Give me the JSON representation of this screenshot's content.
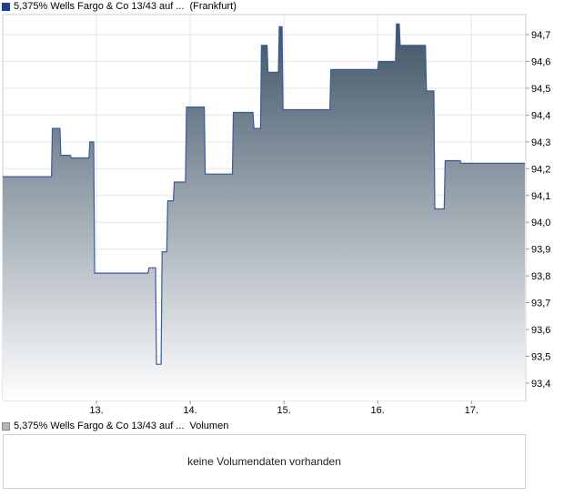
{
  "legend": {
    "price_label": "5,375% Wells Fargo & Co 13/43 auf ...",
    "price_exchange": "(Frankfurt)",
    "volume_label": "5,375% Wells Fargo & Co 13/43 auf ...",
    "volume_title": "Volumen"
  },
  "volume": {
    "message": "keine Volumendaten vorhanden"
  },
  "colors": {
    "line": "#3a5aa0",
    "fill_top": "#3f5466",
    "fill_bottom": "#ffffff"
  },
  "chart_data": {
    "type": "area",
    "title": "",
    "xlabel": "",
    "ylabel": "",
    "x_tick_labels": [
      "13.",
      "14.",
      "15.",
      "16.",
      "17."
    ],
    "x_ticks": [
      13,
      14,
      15,
      16,
      17
    ],
    "xlim": [
      12.0,
      17.58
    ],
    "y_tick_labels": [
      "93,4",
      "93,5",
      "93,6",
      "93,7",
      "93,8",
      "93,9",
      "94,0",
      "94,1",
      "94,2",
      "94,3",
      "94,4",
      "94,5",
      "94,6",
      "94,7"
    ],
    "y_ticks": [
      93.4,
      93.5,
      93.6,
      93.7,
      93.8,
      93.9,
      94.0,
      94.1,
      94.2,
      94.3,
      94.4,
      94.5,
      94.6,
      94.7
    ],
    "ylim": [
      93.335,
      94.775
    ],
    "grid": true,
    "series": [
      {
        "x": [
          12.0,
          12.52,
          12.53,
          12.61,
          12.62,
          12.72,
          12.73,
          12.92,
          12.93,
          12.97,
          12.98,
          13.55,
          13.56,
          13.63,
          13.64,
          13.69,
          13.7,
          13.75,
          13.76,
          13.82,
          13.83,
          13.95,
          13.96,
          14.15,
          14.16,
          14.45,
          14.46,
          14.67,
          14.68,
          14.75,
          14.76,
          14.82,
          14.83,
          14.94,
          14.95,
          14.98,
          14.99,
          15.49,
          15.5,
          16.0,
          16.01,
          16.19,
          16.2,
          16.23,
          16.24,
          16.51,
          16.52,
          16.6,
          16.61,
          16.71,
          16.72,
          16.88,
          16.89,
          16.93,
          16.94,
          17.12,
          17.13,
          17.52,
          17.53,
          17.57
        ],
        "y": [
          94.17,
          94.17,
          94.35,
          94.35,
          94.25,
          94.25,
          94.24,
          94.24,
          94.3,
          94.3,
          93.81,
          93.81,
          93.83,
          93.83,
          93.47,
          93.47,
          93.89,
          93.89,
          94.08,
          94.08,
          94.15,
          94.15,
          94.43,
          94.43,
          94.18,
          94.18,
          94.41,
          94.41,
          94.35,
          94.35,
          94.66,
          94.66,
          94.56,
          94.56,
          94.73,
          94.73,
          94.42,
          94.42,
          94.57,
          94.57,
          94.6,
          94.6,
          94.74,
          94.74,
          94.66,
          94.66,
          94.49,
          94.49,
          94.05,
          94.05,
          94.23,
          94.23,
          94.22,
          94.22,
          94.22,
          94.22,
          94.22,
          94.22,
          94.22,
          94.22
        ]
      }
    ]
  }
}
